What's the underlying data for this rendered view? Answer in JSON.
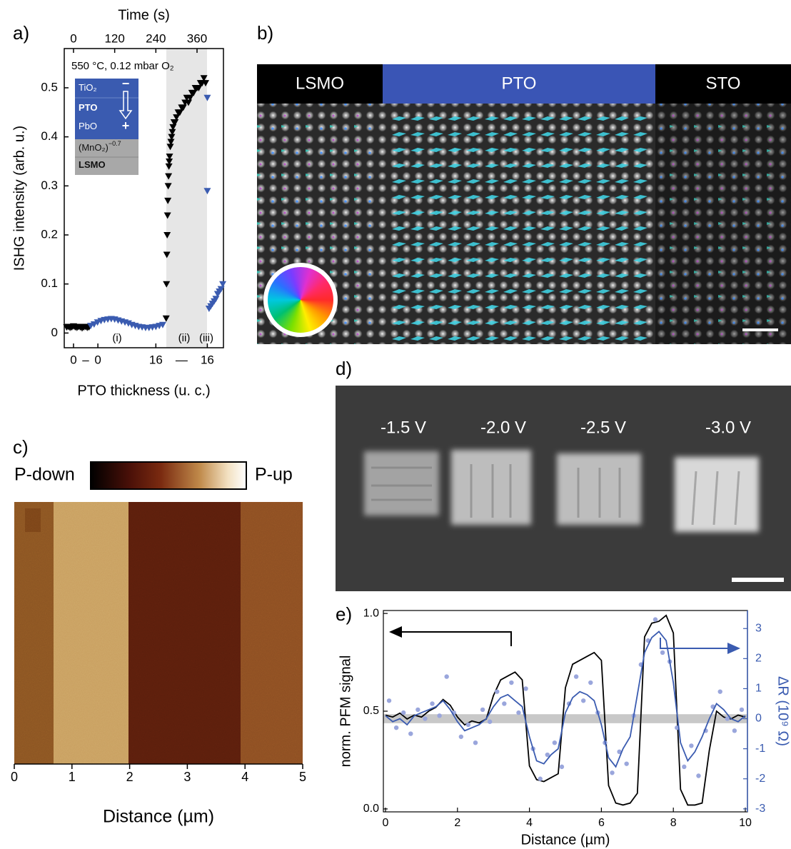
{
  "panel_labels": [
    "a)",
    "b)",
    "c)",
    "d)",
    "e)"
  ],
  "panel_b": {
    "regions": [
      "LSMO",
      "PTO",
      "STO"
    ]
  },
  "panel_d": {
    "labels": [
      "-1.5 V",
      "-2.0 V",
      "-2.5 V",
      "-3.0 V"
    ]
  },
  "chart_data": [
    {
      "type": "scatter",
      "x2label": "Time (s)",
      "x2lim": [
        -27,
        437
      ],
      "x2ticks": [
        0,
        120,
        240,
        360
      ],
      "xlabel": "PTO thickness (u. c.)",
      "xticks": [
        {
          "value": 0,
          "label": "0"
        },
        {
          "value": 71,
          "label": "0"
        },
        {
          "value": 240,
          "label": "16"
        },
        {
          "value": 390,
          "label": "16"
        }
      ],
      "xtick_separators": [
        "–",
        "—"
      ],
      "ylabel": "ISHG intensity (arb. u.)",
      "ylim": [
        -0.03,
        0.58
      ],
      "yticks": [
        0,
        0.1,
        0.2,
        0.3,
        0.4,
        0.5
      ],
      "annotation": "550 °C, 0.12 mbar O₂",
      "phases": [
        "(i)",
        "(ii)",
        "(iii)"
      ],
      "layers": [
        {
          "text": "TiO₂"
        },
        {
          "text": "PTO"
        },
        {
          "text": "PbO"
        },
        {
          "text": "(MnO₂)",
          "sup": "−0.7"
        },
        {
          "text": "LSMO"
        }
      ],
      "signs": [
        "−",
        "+"
      ],
      "series": [
        {
          "color": "#000000",
          "x": [
            -20,
            -15,
            -10,
            -5,
            0,
            5,
            10,
            15,
            20,
            25,
            30,
            35,
            40,
            45,
            270,
            271,
            272,
            273,
            274,
            275,
            276,
            277,
            278,
            279,
            280,
            282,
            284,
            286,
            288,
            290,
            293,
            296,
            300,
            305,
            310,
            315,
            320,
            325,
            330,
            335,
            340,
            345,
            350,
            355,
            360,
            365,
            370,
            375,
            380,
            385
          ],
          "values": [
            0.012,
            0.013,
            0.011,
            0.012,
            0.014,
            0.012,
            0.011,
            0.013,
            0.012,
            0.01,
            0.012,
            0.013,
            0.011,
            0.012,
            0.03,
            0.1,
            0.16,
            0.2,
            0.24,
            0.27,
            0.3,
            0.32,
            0.34,
            0.35,
            0.36,
            0.38,
            0.39,
            0.4,
            0.41,
            0.42,
            0.43,
            0.43,
            0.44,
            0.45,
            0.45,
            0.46,
            0.46,
            0.47,
            0.48,
            0.47,
            0.48,
            0.49,
            0.49,
            0.5,
            0.5,
            0.5,
            0.51,
            0.51,
            0.52,
            0.51
          ]
        },
        {
          "color": "#3a5bb0",
          "x": [
            50,
            60,
            70,
            80,
            90,
            100,
            110,
            120,
            130,
            140,
            150,
            160,
            170,
            180,
            190,
            200,
            210,
            220,
            230,
            240,
            250,
            260,
            390,
            390,
            395,
            400,
            405,
            410,
            415,
            420,
            425,
            430,
            435
          ],
          "values": [
            0.015,
            0.018,
            0.022,
            0.025,
            0.027,
            0.028,
            0.029,
            0.028,
            0.026,
            0.024,
            0.022,
            0.02,
            0.017,
            0.015,
            0.013,
            0.012,
            0.011,
            0.011,
            0.012,
            0.013,
            0.015,
            0.017,
            0.48,
            0.29,
            0.05,
            0.055,
            0.06,
            0.065,
            0.07,
            0.08,
            0.085,
            0.09,
            0.1
          ]
        }
      ]
    },
    {
      "type": "image",
      "colorbar_labels": [
        "P-down",
        "P-up"
      ],
      "xlabel": "Distance (µm)",
      "xlim": [
        0,
        5
      ],
      "xticks": [
        0,
        1,
        2,
        3,
        4,
        5
      ]
    },
    {
      "type": "line",
      "xlabel": "Distance (µm)",
      "ylabel": "norm. PFM signal",
      "y2label": "ΔR (10⁹ Ω)",
      "xlim": [
        0,
        10
      ],
      "xticks": [
        0,
        2,
        4,
        6,
        8,
        10
      ],
      "ylim": [
        -0.015,
        1.015
      ],
      "yticks": [
        {
          "value": 0,
          "label": "0.0"
        },
        {
          "value": 0.5,
          "label": "0.5"
        },
        {
          "value": 1,
          "label": "1.0"
        }
      ],
      "y2lim": [
        -3.1,
        3.6
      ],
      "y2ticks": [
        -3,
        -2,
        -1,
        0,
        1,
        2,
        3
      ],
      "reference_band": [
        -0.15,
        0.15
      ],
      "series": [
        {
          "style": "line",
          "color": "#000000",
          "x": [
            0,
            0.2,
            0.4,
            0.6,
            0.8,
            1,
            1.2,
            1.4,
            1.6,
            1.8,
            2,
            2.2,
            2.4,
            2.6,
            2.8,
            3,
            3.2,
            3.4,
            3.6,
            3.8,
            4,
            4.2,
            4.4,
            4.6,
            4.8,
            5,
            5.2,
            5.4,
            5.6,
            5.8,
            6,
            6.2,
            6.4,
            6.6,
            6.8,
            7,
            7.2,
            7.4,
            7.6,
            7.8,
            8,
            8.2,
            8.4,
            8.6,
            8.8,
            9,
            9.2,
            9.4,
            9.6,
            9.8,
            10
          ],
          "values": [
            0.48,
            0.47,
            0.49,
            0.46,
            0.48,
            0.47,
            0.5,
            0.52,
            0.56,
            0.53,
            0.47,
            0.43,
            0.45,
            0.44,
            0.46,
            0.58,
            0.66,
            0.68,
            0.7,
            0.66,
            0.22,
            0.15,
            0.14,
            0.16,
            0.18,
            0.62,
            0.74,
            0.76,
            0.78,
            0.8,
            0.76,
            0.12,
            0.03,
            0.02,
            0.03,
            0.08,
            0.88,
            0.95,
            0.96,
            0.99,
            0.9,
            0.1,
            0.02,
            0.02,
            0.03,
            0.3,
            0.5,
            0.47,
            0.46,
            0.48,
            0.47
          ]
        },
        {
          "style": "dots",
          "color": "#9aa6dc",
          "axis": "y2",
          "x": [
            0.1,
            0.3,
            0.5,
            0.7,
            0.9,
            1.1,
            1.3,
            1.5,
            1.7,
            1.9,
            2.1,
            2.3,
            2.5,
            2.7,
            2.9,
            3.1,
            3.3,
            3.5,
            3.7,
            3.9,
            4.1,
            4.3,
            4.5,
            4.7,
            4.9,
            5.1,
            5.3,
            5.5,
            5.7,
            5.9,
            6.1,
            6.3,
            6.5,
            6.7,
            6.9,
            7.1,
            7.3,
            7.5,
            7.7,
            7.9,
            8.1,
            8.3,
            8.5,
            8.7,
            8.9,
            9.1,
            9.3,
            9.5,
            9.7,
            9.9
          ],
          "values": [
            0.6,
            -0.3,
            0.2,
            -0.5,
            0.3,
            0.0,
            0.5,
            0.1,
            1.4,
            0.2,
            -0.6,
            -0.2,
            -0.8,
            0.3,
            -0.1,
            0.9,
            0.5,
            1.2,
            0.2,
            1.0,
            -1.0,
            -2.0,
            -1.2,
            -0.8,
            -1.6,
            0.5,
            1.4,
            0.6,
            1.2,
            0.2,
            -0.8,
            -1.8,
            -1.1,
            -1.5,
            0.1,
            1.8,
            2.6,
            3.3,
            2.2,
            1.9,
            -0.3,
            -1.6,
            -0.9,
            -1.9,
            -0.4,
            0.4,
            0.9,
            0.0,
            -0.4,
            0.3
          ]
        },
        {
          "style": "line",
          "color": "#3a5bb0",
          "axis": "y2",
          "x": [
            0,
            0.2,
            0.4,
            0.6,
            0.8,
            1,
            1.2,
            1.4,
            1.6,
            1.8,
            2,
            2.2,
            2.4,
            2.6,
            2.8,
            3,
            3.2,
            3.4,
            3.6,
            3.8,
            4,
            4.2,
            4.4,
            4.6,
            4.8,
            5,
            5.2,
            5.4,
            5.6,
            5.8,
            6,
            6.2,
            6.4,
            6.6,
            6.8,
            7,
            7.2,
            7.4,
            7.6,
            7.8,
            8,
            8.2,
            8.4,
            8.6,
            8.8,
            9,
            9.2,
            9.4,
            9.6,
            9.8,
            10
          ],
          "values": [
            0.1,
            -0.1,
            0.0,
            -0.2,
            0.1,
            0.2,
            0.3,
            0.4,
            0.6,
            0.3,
            -0.1,
            -0.4,
            -0.3,
            -0.2,
            0.0,
            0.4,
            0.7,
            0.8,
            0.6,
            0.4,
            -0.6,
            -1.4,
            -1.5,
            -1.2,
            -1.0,
            0.2,
            0.7,
            0.9,
            0.8,
            0.6,
            -0.2,
            -1.3,
            -1.6,
            -1.0,
            -0.6,
            0.8,
            2.2,
            2.7,
            2.9,
            2.6,
            1.2,
            -0.8,
            -1.4,
            -1.1,
            -0.6,
            0.0,
            0.5,
            0.3,
            0.0,
            -0.1,
            0.1
          ]
        }
      ]
    }
  ]
}
